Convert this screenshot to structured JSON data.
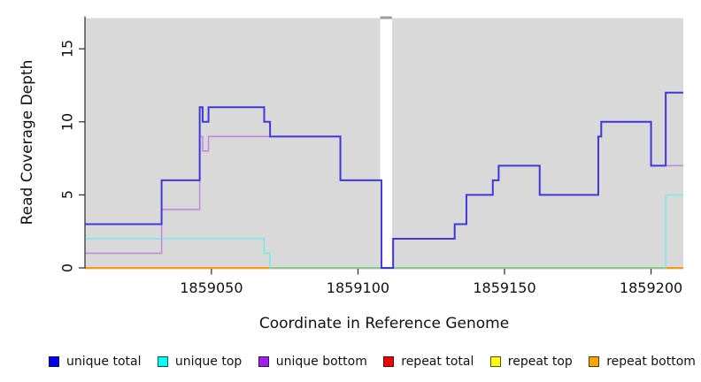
{
  "chart_data": {
    "type": "line",
    "subtype": "step-coverage",
    "title": "",
    "xlabel": "Coordinate in Reference Genome",
    "ylabel": "Read Coverage Depth",
    "xlim": [
      1859007,
      1859211
    ],
    "ylim": [
      0,
      17.1
    ],
    "grid": false,
    "panel_bg": "#D9D9D9",
    "axis_color": "#2B2B2B",
    "x_ticks": [
      {
        "value": 1859050,
        "label": "1859050"
      },
      {
        "value": 1859100,
        "label": "1859100"
      },
      {
        "value": 1859150,
        "label": "1859150"
      },
      {
        "value": 1859200,
        "label": "1859200"
      }
    ],
    "y_ticks": [
      {
        "value": 0,
        "label": "0"
      },
      {
        "value": 5,
        "label": "5"
      },
      {
        "value": 10,
        "label": "10"
      },
      {
        "value": 15,
        "label": "15"
      }
    ],
    "gap": {
      "x1": 1859107.6,
      "x2": 1859111.6,
      "fill": "#FFFFFF",
      "top_bar_color": "#9E9E9E"
    },
    "legend": [
      {
        "name": "unique-total",
        "label": "unique total",
        "color": "#0000EE"
      },
      {
        "name": "unique-top",
        "label": "unique top",
        "color": "#00FFFF"
      },
      {
        "name": "unique-bottom",
        "label": "unique bottom",
        "color": "#A020F0"
      },
      {
        "name": "repeat-total",
        "label": "repeat total",
        "color": "#EE0000"
      },
      {
        "name": "repeat-top",
        "label": "repeat top",
        "color": "#FFFF00"
      },
      {
        "name": "repeat-bottom",
        "label": "repeat bottom",
        "color": "#FFA500"
      }
    ],
    "series": [
      {
        "name": "repeat-total",
        "color": "#CD0000",
        "width": 1.4,
        "segments": [
          [
            1859007,
            1859211,
            0
          ]
        ]
      },
      {
        "name": "repeat-top",
        "color": "#FFFF00",
        "width": 1.4,
        "segments": [
          [
            1859007,
            1859211,
            0
          ]
        ]
      },
      {
        "name": "repeat-bottom",
        "color": "#FF9812",
        "width": 2,
        "segments": [
          [
            1859007,
            1859211,
            0
          ]
        ]
      },
      {
        "name": "unique-top",
        "color": "#7FE8EC",
        "width": 1.6,
        "segments": [
          [
            1859007,
            1859068,
            2
          ],
          [
            1859068,
            1859070,
            1
          ],
          [
            1859070,
            1859205,
            0
          ],
          [
            1859205,
            1859211,
            5
          ]
        ]
      },
      {
        "name": "zero-line-green",
        "color": "#7CCE8E",
        "width": 1.6,
        "segments": [
          [
            1859070,
            1859205,
            0
          ]
        ]
      },
      {
        "name": "unique-bottom",
        "color": "#C18BDB",
        "width": 1.6,
        "segments": [
          [
            1859007,
            1859033,
            1
          ],
          [
            1859033,
            1859046,
            4
          ],
          [
            1859046,
            1859047,
            9
          ],
          [
            1859047,
            1859049,
            8
          ],
          [
            1859049,
            1859094,
            9
          ],
          [
            1859094,
            1859108,
            6
          ],
          [
            1859108,
            1859112,
            0
          ],
          [
            1859112,
            1859133,
            2
          ],
          [
            1859133,
            1859137,
            3
          ],
          [
            1859137,
            1859146,
            5
          ],
          [
            1859146,
            1859148,
            6
          ],
          [
            1859148,
            1859162,
            7
          ],
          [
            1859162,
            1859182,
            5
          ],
          [
            1859182,
            1859183,
            9
          ],
          [
            1859183,
            1859200,
            10
          ],
          [
            1859200,
            1859211,
            7
          ]
        ]
      },
      {
        "name": "unique-total",
        "color": "#4038DC",
        "width": 2,
        "segments": [
          [
            1859007,
            1859033,
            3
          ],
          [
            1859033,
            1859046,
            6
          ],
          [
            1859046,
            1859047,
            11
          ],
          [
            1859047,
            1859049,
            10
          ],
          [
            1859049,
            1859068,
            11
          ],
          [
            1859068,
            1859070,
            10
          ],
          [
            1859070,
            1859094,
            9
          ],
          [
            1859094,
            1859108,
            6
          ],
          [
            1859108,
            1859112,
            0
          ],
          [
            1859112,
            1859133,
            2
          ],
          [
            1859133,
            1859137,
            3
          ],
          [
            1859137,
            1859146,
            5
          ],
          [
            1859146,
            1859148,
            6
          ],
          [
            1859148,
            1859162,
            7
          ],
          [
            1859162,
            1859182,
            5
          ],
          [
            1859182,
            1859183,
            9
          ],
          [
            1859183,
            1859200,
            10
          ],
          [
            1859200,
            1859205,
            7
          ],
          [
            1859205,
            1859211,
            12
          ]
        ]
      }
    ]
  }
}
